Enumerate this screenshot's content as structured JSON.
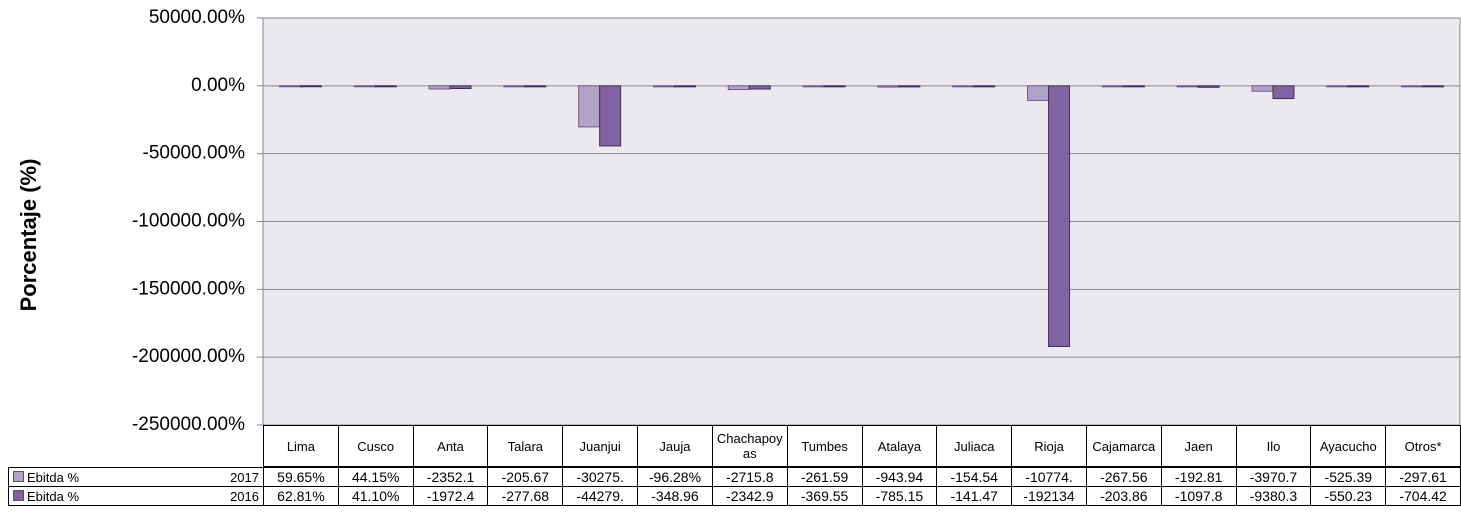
{
  "chart_data": {
    "type": "bar",
    "y_label": "Porcentaje (%)",
    "categories": [
      "Lima",
      "Cusco",
      "Anta",
      "Talara",
      "Juanjui",
      "Jauja",
      "Chachapoyas",
      "Tumbes",
      "Atalaya",
      "Juliaca",
      "Rioja",
      "Cajamarca",
      "Jaen",
      "Ilo",
      "Ayacucho",
      "Otros*"
    ],
    "series": [
      {
        "name": "Ebitda %",
        "year": "2017",
        "color": "#b3a2c7",
        "values": [
          59.65,
          44.15,
          -2352.1,
          -205.67,
          -30275,
          -96.28,
          -2715.8,
          -261.59,
          -943.94,
          -154.54,
          -10774,
          -267.56,
          -192.81,
          -3970.7,
          -525.39,
          -297.61
        ],
        "value_labels": [
          "59.65%",
          "44.15%",
          "-2352.1",
          "-205.67",
          "-30275.",
          "-96.28%",
          "-2715.8",
          "-261.59",
          "-943.94",
          "-154.54",
          "-10774.",
          "-267.56",
          "-192.81",
          "-3970.7",
          "-525.39",
          "-297.61"
        ]
      },
      {
        "name": "Ebitda %",
        "year": "2016",
        "color": "#8064a2",
        "values": [
          62.81,
          41.1,
          -1972.4,
          -277.68,
          -44279,
          -348.96,
          -2342.9,
          -369.55,
          -785.15,
          -141.47,
          -192134,
          -203.86,
          -1097.8,
          -9380.3,
          -550.23,
          -704.42
        ],
        "value_labels": [
          "62.81%",
          "41.10%",
          "-1972.4",
          "-277.68",
          "-44279.",
          "-348.96",
          "-2342.9",
          "-369.55",
          "-785.15",
          "-141.47",
          "-192134",
          "-203.86",
          "-1097.8",
          "-9380.3",
          "-550.23",
          "-704.42"
        ]
      }
    ],
    "ylim": [
      -250000,
      50000
    ],
    "yticks": [
      {
        "value": 50000,
        "label": "50000.00%"
      },
      {
        "value": 0,
        "label": "0.00%"
      },
      {
        "value": -50000,
        "label": "-50000.00%"
      },
      {
        "value": -100000,
        "label": "-100000.00%"
      },
      {
        "value": -150000,
        "label": "-150000.00%"
      },
      {
        "value": -200000,
        "label": "-200000.00%"
      },
      {
        "value": -250000,
        "label": "-250000.00%"
      }
    ],
    "grid": true
  }
}
